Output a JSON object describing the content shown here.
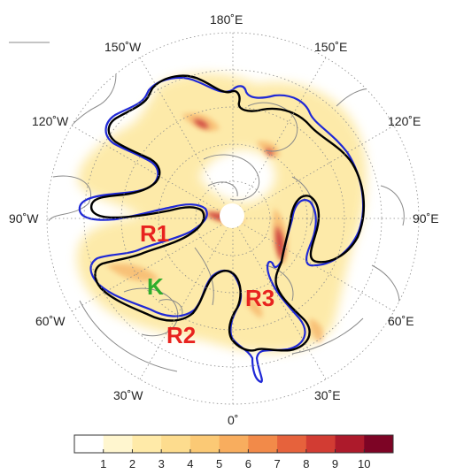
{
  "map": {
    "projection": "north polar stereographic",
    "longitude_labels": [
      "180˚E",
      "150˚E",
      "120˚E",
      "90˚E",
      "60˚E",
      "30˚E",
      "0˚",
      "30˚W",
      "60˚W",
      "90˚W",
      "120˚W",
      "150˚W"
    ],
    "region_labels": [
      {
        "text": "R1",
        "color": "#e8231f"
      },
      {
        "text": "R2",
        "color": "#e8231f"
      },
      {
        "text": "R3",
        "color": "#e8231f"
      },
      {
        "text": "K",
        "color": "#2fae2c"
      }
    ],
    "contour_colors": {
      "black": "#000000",
      "blue": "#1f28d6",
      "gray": "#8a8a8a"
    }
  },
  "colorbar": {
    "ticks": [
      "1",
      "2",
      "3",
      "4",
      "5",
      "6",
      "7",
      "8",
      "9",
      "10"
    ],
    "colors": [
      "#ffffff",
      "#fff6cf",
      "#ffeaa8",
      "#fddc8e",
      "#fbc975",
      "#f8ad5e",
      "#f28a49",
      "#e6623c",
      "#d23c33",
      "#ad1a2b",
      "#7d0425"
    ]
  }
}
